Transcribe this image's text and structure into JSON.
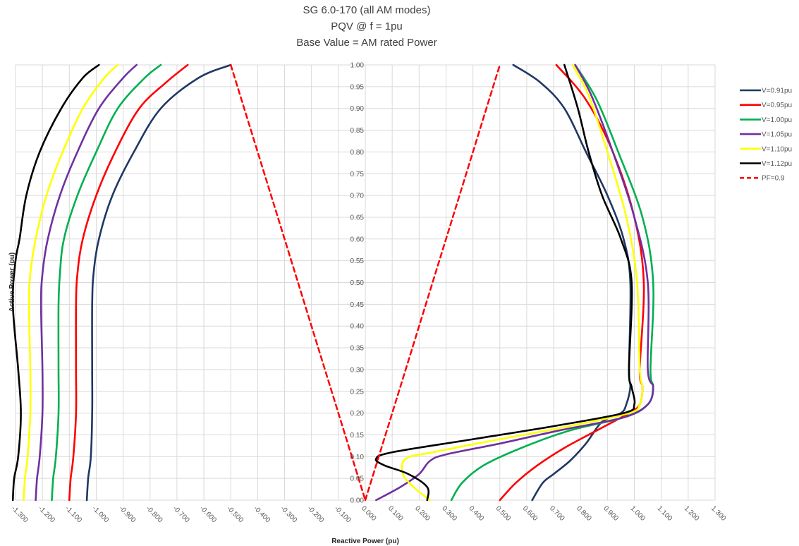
{
  "chart_data": {
    "type": "line",
    "title_lines": [
      "SG 6.0-170 (all AM modes)",
      "PQV @ f = 1pu",
      "Base Value = AM rated Power"
    ],
    "xlabel": "Reactive Power (pu)",
    "ylabel": "Active Power (pu)",
    "xlim": [
      -1.3,
      1.3
    ],
    "ylim": [
      0.0,
      1.0
    ],
    "x_ticks": [
      "-1.300",
      "-1.200",
      "-1.100",
      "-1.000",
      "-0.900",
      "-0.800",
      "-0.700",
      "-0.600",
      "-0.500",
      "-0.400",
      "-0.300",
      "-0.200",
      "-0.100",
      "0.000",
      "0.100",
      "0.200",
      "0.300",
      "0.400",
      "0.500",
      "0.600",
      "0.700",
      "0.800",
      "0.900",
      "1.000",
      "1.100",
      "1.200",
      "1.300"
    ],
    "y_ticks": [
      "0.00",
      "0.05",
      "0.10",
      "0.15",
      "0.20",
      "0.25",
      "0.30",
      "0.35",
      "0.40",
      "0.45",
      "0.50",
      "0.55",
      "0.60",
      "0.65",
      "0.70",
      "0.75",
      "0.80",
      "0.85",
      "0.90",
      "0.95",
      "1.00"
    ],
    "grid": true,
    "legend_position": "right",
    "series": [
      {
        "name": "V=0.91pu",
        "color": "#1f3864",
        "dash": false,
        "left": [
          [
            -1.035,
            0.0
          ],
          [
            -1.03,
            0.05
          ],
          [
            -1.02,
            0.1
          ],
          [
            -1.015,
            0.2
          ],
          [
            -1.015,
            0.3
          ],
          [
            -1.015,
            0.45
          ],
          [
            -1.01,
            0.52
          ],
          [
            -0.99,
            0.6
          ],
          [
            -0.94,
            0.7
          ],
          [
            -0.86,
            0.8
          ],
          [
            -0.76,
            0.9
          ],
          [
            -0.62,
            0.97
          ],
          [
            -0.5,
            1.0
          ]
        ],
        "right": [
          [
            0.62,
            0.0
          ],
          [
            0.66,
            0.04
          ],
          [
            0.7,
            0.06
          ],
          [
            0.76,
            0.09
          ],
          [
            0.82,
            0.13
          ],
          [
            0.88,
            0.18
          ],
          [
            0.95,
            0.2
          ],
          [
            0.97,
            0.22
          ],
          [
            0.985,
            0.26
          ],
          [
            0.98,
            0.3
          ],
          [
            0.985,
            0.5
          ],
          [
            0.96,
            0.6
          ],
          [
            0.9,
            0.7
          ],
          [
            0.82,
            0.8
          ],
          [
            0.74,
            0.9
          ],
          [
            0.65,
            0.96
          ],
          [
            0.55,
            1.0
          ]
        ]
      },
      {
        "name": "V=0.95pu",
        "color": "#ff0000",
        "dash": false,
        "left": [
          [
            -1.1,
            0.0
          ],
          [
            -1.095,
            0.05
          ],
          [
            -1.085,
            0.1
          ],
          [
            -1.075,
            0.2
          ],
          [
            -1.075,
            0.3
          ],
          [
            -1.075,
            0.45
          ],
          [
            -1.07,
            0.52
          ],
          [
            -1.05,
            0.6
          ],
          [
            -1.0,
            0.7
          ],
          [
            -0.93,
            0.8
          ],
          [
            -0.84,
            0.9
          ],
          [
            -0.74,
            0.96
          ],
          [
            -0.66,
            1.0
          ]
        ],
        "right": [
          [
            0.5,
            0.0
          ],
          [
            0.56,
            0.04
          ],
          [
            0.64,
            0.08
          ],
          [
            0.74,
            0.12
          ],
          [
            0.86,
            0.16
          ],
          [
            0.98,
            0.2
          ],
          [
            1.02,
            0.22
          ],
          [
            1.03,
            0.26
          ],
          [
            1.02,
            0.3
          ],
          [
            1.035,
            0.5
          ],
          [
            1.0,
            0.65
          ],
          [
            0.92,
            0.8
          ],
          [
            0.82,
            0.92
          ],
          [
            0.71,
            1.0
          ]
        ]
      },
      {
        "name": "V=1.00pu",
        "color": "#00b050",
        "dash": false,
        "left": [
          [
            -1.165,
            0.0
          ],
          [
            -1.16,
            0.05
          ],
          [
            -1.15,
            0.1
          ],
          [
            -1.14,
            0.2
          ],
          [
            -1.14,
            0.3
          ],
          [
            -1.14,
            0.45
          ],
          [
            -1.135,
            0.52
          ],
          [
            -1.12,
            0.6
          ],
          [
            -1.07,
            0.7
          ],
          [
            -1.0,
            0.8
          ],
          [
            -0.92,
            0.9
          ],
          [
            -0.82,
            0.97
          ],
          [
            -0.76,
            1.0
          ]
        ],
        "right": [
          [
            0.32,
            0.0
          ],
          [
            0.36,
            0.04
          ],
          [
            0.44,
            0.08
          ],
          [
            0.58,
            0.12
          ],
          [
            0.76,
            0.16
          ],
          [
            0.96,
            0.19
          ],
          [
            1.05,
            0.22
          ],
          [
            1.07,
            0.26
          ],
          [
            1.06,
            0.3
          ],
          [
            1.07,
            0.5
          ],
          [
            1.03,
            0.65
          ],
          [
            0.94,
            0.8
          ],
          [
            0.86,
            0.92
          ],
          [
            0.78,
            1.0
          ]
        ]
      },
      {
        "name": "V=1.05pu",
        "color": "#7030a0",
        "dash": false,
        "left": [
          [
            -1.225,
            0.0
          ],
          [
            -1.22,
            0.05
          ],
          [
            -1.21,
            0.1
          ],
          [
            -1.2,
            0.2
          ],
          [
            -1.2,
            0.3
          ],
          [
            -1.205,
            0.45
          ],
          [
            -1.2,
            0.52
          ],
          [
            -1.18,
            0.6
          ],
          [
            -1.135,
            0.7
          ],
          [
            -1.07,
            0.8
          ],
          [
            -0.99,
            0.9
          ],
          [
            -0.9,
            0.97
          ],
          [
            -0.85,
            1.0
          ]
        ],
        "right": [
          [
            0.04,
            0.0
          ],
          [
            0.13,
            0.03
          ],
          [
            0.2,
            0.06
          ],
          [
            0.24,
            0.09
          ],
          [
            0.3,
            0.105
          ],
          [
            0.5,
            0.13
          ],
          [
            0.72,
            0.16
          ],
          [
            0.96,
            0.19
          ],
          [
            1.05,
            0.22
          ],
          [
            1.07,
            0.26
          ],
          [
            1.05,
            0.3
          ],
          [
            1.05,
            0.5
          ],
          [
            1.0,
            0.65
          ],
          [
            0.92,
            0.8
          ],
          [
            0.84,
            0.93
          ],
          [
            0.78,
            1.0
          ]
        ]
      },
      {
        "name": "V=1.10pu",
        "color": "#ffff00",
        "dash": false,
        "left": [
          [
            -1.27,
            0.0
          ],
          [
            -1.265,
            0.05
          ],
          [
            -1.255,
            0.1
          ],
          [
            -1.245,
            0.2
          ],
          [
            -1.245,
            0.3
          ],
          [
            -1.25,
            0.45
          ],
          [
            -1.245,
            0.52
          ],
          [
            -1.225,
            0.6
          ],
          [
            -1.185,
            0.7
          ],
          [
            -1.125,
            0.8
          ],
          [
            -1.05,
            0.9
          ],
          [
            -0.97,
            0.97
          ],
          [
            -0.92,
            1.0
          ]
        ],
        "right": [
          [
            0.24,
            0.0
          ],
          [
            0.18,
            0.03
          ],
          [
            0.14,
            0.06
          ],
          [
            0.15,
            0.095
          ],
          [
            0.25,
            0.11
          ],
          [
            0.5,
            0.14
          ],
          [
            0.76,
            0.17
          ],
          [
            0.98,
            0.2
          ],
          [
            1.02,
            0.22
          ],
          [
            1.03,
            0.26
          ],
          [
            1.02,
            0.3
          ],
          [
            1.01,
            0.5
          ],
          [
            0.97,
            0.65
          ],
          [
            0.9,
            0.8
          ],
          [
            0.83,
            0.93
          ],
          [
            0.77,
            1.0
          ]
        ]
      },
      {
        "name": "V=1.12pu",
        "color": "#000000",
        "dash": false,
        "left": [
          [
            -1.31,
            0.0
          ],
          [
            -1.305,
            0.05
          ],
          [
            -1.29,
            0.1
          ],
          [
            -1.28,
            0.2
          ],
          [
            -1.29,
            0.3
          ],
          [
            -1.31,
            0.45
          ],
          [
            -1.3,
            0.55
          ],
          [
            -1.285,
            0.6
          ],
          [
            -1.26,
            0.7
          ],
          [
            -1.21,
            0.8
          ],
          [
            -1.13,
            0.9
          ],
          [
            -1.05,
            0.97
          ],
          [
            -0.99,
            1.0
          ]
        ],
        "right": [
          [
            0.23,
            0.0
          ],
          [
            0.23,
            0.03
          ],
          [
            0.16,
            0.06
          ],
          [
            0.07,
            0.08
          ],
          [
            0.04,
            0.095
          ],
          [
            0.1,
            0.11
          ],
          [
            0.4,
            0.14
          ],
          [
            0.7,
            0.17
          ],
          [
            0.96,
            0.2
          ],
          [
            1.0,
            0.22
          ],
          [
            0.99,
            0.26
          ],
          [
            0.98,
            0.3
          ],
          [
            0.99,
            0.5
          ],
          [
            0.95,
            0.6
          ],
          [
            0.88,
            0.7
          ],
          [
            0.83,
            0.8
          ],
          [
            0.79,
            0.9
          ],
          [
            0.74,
            1.0
          ]
        ]
      },
      {
        "name": "PF=0.9",
        "color": "#ff0000",
        "dash": true,
        "left": [
          [
            -0.5,
            1.0
          ],
          [
            0.0,
            0.0
          ]
        ],
        "right": [
          [
            0.0,
            0.0
          ],
          [
            0.5,
            1.0
          ]
        ]
      }
    ]
  }
}
